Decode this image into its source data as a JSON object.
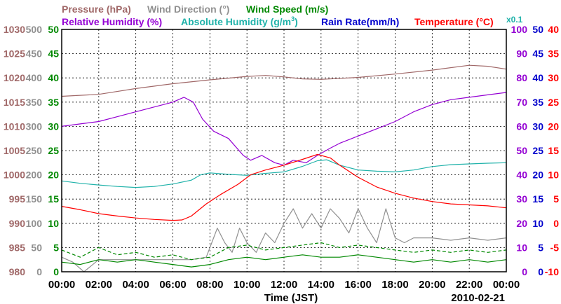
{
  "chart_data": {
    "type": "line",
    "date": "2010-02-21",
    "xlabel": "Time (JST)",
    "x_ticks": [
      "00:00",
      "02:00",
      "04:00",
      "06:00",
      "08:00",
      "10:00",
      "12:00",
      "14:00",
      "16:00",
      "18:00",
      "20:00",
      "22:00",
      "00:00"
    ],
    "x_range_hours": [
      0,
      24
    ],
    "legend": [
      {
        "name": "Pressure (hPa)",
        "color": "#a06868"
      },
      {
        "name": "Wind Direction (°)",
        "color": "#909090"
      },
      {
        "name": "Wind Speed (m/s)",
        "color": "#008800"
      },
      {
        "name": "Relative Humidity (%)",
        "color": "#9400d3"
      },
      {
        "name": "Absolute Humidity",
        "unit_text": "(g/m",
        "unit_sup": "3",
        "unit_close": ")",
        "color": "#20b2aa"
      },
      {
        "name": "Rain Rate(mm/h)",
        "color": "#0000cc"
      },
      {
        "name": "Temperature (°C)",
        "color": "#ff0000"
      }
    ],
    "abs_humidity_scale_note": "x0.1",
    "axes": {
      "pressure": {
        "side": "left",
        "color": "#a06868",
        "range": [
          980,
          1030
        ],
        "ticks": [
          "1030",
          "1025",
          "1020",
          "1015",
          "1010",
          "1005",
          "1000",
          "995",
          "990",
          "985",
          "980"
        ]
      },
      "wind_direction": {
        "side": "left",
        "color": "#909090",
        "range": [
          0,
          500
        ],
        "ticks": [
          "500",
          "450",
          "400",
          "350",
          "300",
          "250",
          "200",
          "150",
          "100",
          "50",
          "0"
        ]
      },
      "wind_speed": {
        "side": "left",
        "color": "#008800",
        "range": [
          0,
          50
        ],
        "ticks": [
          "50",
          "45",
          "40",
          "35",
          "30",
          "25",
          "20",
          "15",
          "10",
          "5",
          "0"
        ]
      },
      "humidity": {
        "side": "right",
        "color": "#9400d3",
        "range": [
          0,
          100
        ],
        "ticks": [
          "100",
          "90",
          "80",
          "70",
          "60",
          "50",
          "40",
          "30",
          "20",
          "10",
          "0"
        ]
      },
      "rain_rate": {
        "side": "right",
        "color": "#0000cc",
        "range": [
          0,
          50
        ],
        "ticks": [
          "50",
          "45",
          "40",
          "35",
          "30",
          "25",
          "20",
          "15",
          "10",
          "5",
          "0"
        ]
      },
      "temperature": {
        "side": "right",
        "color": "#ff0000",
        "range": [
          -10,
          40
        ],
        "ticks": [
          "40",
          "35",
          "30",
          "25",
          "20",
          "15",
          "10",
          "5",
          "0",
          "-5",
          "-10"
        ]
      }
    },
    "series": [
      {
        "name": "Pressure",
        "axis": "pressure",
        "color": "#a06868",
        "points": [
          [
            0,
            1016.2
          ],
          [
            2,
            1016.6
          ],
          [
            4,
            1017.8
          ],
          [
            6,
            1018.8
          ],
          [
            8,
            1019.6
          ],
          [
            10,
            1020.3
          ],
          [
            11,
            1020.5
          ],
          [
            12,
            1020.2
          ],
          [
            13,
            1019.8
          ],
          [
            14,
            1019.7
          ],
          [
            16,
            1020.1
          ],
          [
            18,
            1020.8
          ],
          [
            20,
            1021.6
          ],
          [
            22,
            1022.6
          ],
          [
            23,
            1022.4
          ],
          [
            24,
            1021.8
          ]
        ]
      },
      {
        "name": "Relative Humidity",
        "axis": "humidity",
        "color": "#9400d3",
        "points": [
          [
            0,
            60
          ],
          [
            1,
            61
          ],
          [
            2,
            62
          ],
          [
            3,
            64
          ],
          [
            4,
            66
          ],
          [
            5,
            68
          ],
          [
            6,
            70
          ],
          [
            6.6,
            72
          ],
          [
            7.1,
            70
          ],
          [
            7.6,
            63
          ],
          [
            8.2,
            58
          ],
          [
            9,
            55
          ],
          [
            9.8,
            48
          ],
          [
            10.2,
            46
          ],
          [
            10.8,
            48
          ],
          [
            11.5,
            45
          ],
          [
            12,
            44
          ],
          [
            12.5,
            46
          ],
          [
            13.2,
            45
          ],
          [
            13.8,
            48
          ],
          [
            14.5,
            51
          ],
          [
            15,
            53
          ],
          [
            16,
            56
          ],
          [
            17,
            59
          ],
          [
            18,
            62
          ],
          [
            19,
            66
          ],
          [
            20,
            69
          ],
          [
            21,
            71
          ],
          [
            22,
            72
          ],
          [
            23,
            73
          ],
          [
            24,
            74
          ]
        ]
      },
      {
        "name": "Absolute Humidity",
        "axis": "humidity",
        "color": "#20b2aa",
        "points": [
          [
            0,
            37.5
          ],
          [
            1,
            36.5
          ],
          [
            2,
            35.8
          ],
          [
            3,
            35.2
          ],
          [
            4,
            34.8
          ],
          [
            5,
            35.2
          ],
          [
            6,
            36.2
          ],
          [
            7,
            37.8
          ],
          [
            7.5,
            40
          ],
          [
            8,
            40.8
          ],
          [
            9,
            40.2
          ],
          [
            10,
            39.8
          ],
          [
            11,
            40.6
          ],
          [
            12,
            41.2
          ],
          [
            13,
            43.5
          ],
          [
            13.8,
            45.8
          ],
          [
            14.3,
            46.2
          ],
          [
            15,
            44
          ],
          [
            16,
            42
          ],
          [
            17,
            41.5
          ],
          [
            18,
            41.2
          ],
          [
            19,
            42
          ],
          [
            20,
            43.4
          ],
          [
            21,
            44.2
          ],
          [
            22,
            44.5
          ],
          [
            23,
            44.8
          ],
          [
            24,
            45
          ]
        ]
      },
      {
        "name": "Temperature",
        "axis": "temperature",
        "color": "#ff0000",
        "points": [
          [
            0,
            3.5
          ],
          [
            1,
            2.8
          ],
          [
            2,
            2
          ],
          [
            3,
            1.5
          ],
          [
            4,
            1.1
          ],
          [
            5,
            0.8
          ],
          [
            6,
            0.6
          ],
          [
            6.5,
            0.7
          ],
          [
            7,
            1.5
          ],
          [
            7.8,
            4
          ],
          [
            8.6,
            6
          ],
          [
            9.5,
            8
          ],
          [
            10.2,
            10
          ],
          [
            11,
            11
          ],
          [
            12,
            12
          ],
          [
            13,
            13.2
          ],
          [
            13.8,
            14.2
          ],
          [
            14.5,
            13.5
          ],
          [
            15,
            12
          ],
          [
            16,
            9.5
          ],
          [
            17,
            7.5
          ],
          [
            18,
            6.2
          ],
          [
            19,
            5.2
          ],
          [
            20,
            4.5
          ],
          [
            21,
            4
          ],
          [
            22,
            3.8
          ],
          [
            23,
            3.6
          ],
          [
            24,
            3.2
          ]
        ]
      },
      {
        "name": "Wind Direction",
        "axis": "wind_direction",
        "color": "#909090",
        "points": [
          [
            0,
            30
          ],
          [
            0.6,
            20
          ],
          [
            1.2,
            0
          ],
          [
            2,
            25
          ],
          [
            3,
            25
          ],
          [
            4,
            25
          ],
          [
            5,
            25
          ],
          [
            6,
            25
          ],
          [
            7,
            25
          ],
          [
            7.8,
            30
          ],
          [
            8.1,
            60
          ],
          [
            8.4,
            90
          ],
          [
            8.8,
            60
          ],
          [
            9.2,
            40
          ],
          [
            9.6,
            90
          ],
          [
            10,
            60
          ],
          [
            10.5,
            40
          ],
          [
            11,
            80
          ],
          [
            11.5,
            60
          ],
          [
            12,
            100
          ],
          [
            12.5,
            130
          ],
          [
            13,
            90
          ],
          [
            13.5,
            120
          ],
          [
            14,
            90
          ],
          [
            14.5,
            130
          ],
          [
            15,
            110
          ],
          [
            15.5,
            80
          ],
          [
            16,
            130
          ],
          [
            16.5,
            90
          ],
          [
            17,
            60
          ],
          [
            17.5,
            130
          ],
          [
            18,
            70
          ],
          [
            18.5,
            60
          ],
          [
            19,
            70
          ],
          [
            20,
            70
          ],
          [
            21,
            65
          ],
          [
            22,
            70
          ],
          [
            23,
            65
          ],
          [
            24,
            70
          ]
        ]
      },
      {
        "name": "Wind Speed",
        "axis": "wind_speed",
        "color": "#008800",
        "points": [
          [
            0,
            2
          ],
          [
            1,
            1.5
          ],
          [
            2,
            2.5
          ],
          [
            3,
            2
          ],
          [
            4,
            2.5
          ],
          [
            5,
            2
          ],
          [
            6,
            1.5
          ],
          [
            7,
            1
          ],
          [
            8,
            1.5
          ],
          [
            9,
            2.5
          ],
          [
            10,
            3
          ],
          [
            11,
            2.5
          ],
          [
            12,
            3
          ],
          [
            13,
            3.5
          ],
          [
            14,
            3
          ],
          [
            15,
            3
          ],
          [
            16,
            3.5
          ],
          [
            17,
            3
          ],
          [
            18,
            2.5
          ],
          [
            19,
            2
          ],
          [
            20,
            2.5
          ],
          [
            21,
            2
          ],
          [
            22,
            2.5
          ],
          [
            23,
            2
          ],
          [
            24,
            2.5
          ]
        ]
      },
      {
        "name": "Wind Speed (gust)",
        "axis": "wind_speed",
        "color": "#008800",
        "dashed": true,
        "points": [
          [
            0,
            4.5
          ],
          [
            1,
            3
          ],
          [
            2,
            5
          ],
          [
            3,
            3.5
          ],
          [
            4,
            4
          ],
          [
            5,
            3
          ],
          [
            6,
            3.5
          ],
          [
            7,
            2.5
          ],
          [
            8,
            3
          ],
          [
            9,
            5
          ],
          [
            10,
            5.5
          ],
          [
            11,
            4.5
          ],
          [
            12,
            5
          ],
          [
            13,
            5.5
          ],
          [
            14,
            6
          ],
          [
            15,
            5
          ],
          [
            16,
            5.5
          ],
          [
            17,
            5
          ],
          [
            18,
            4.5
          ],
          [
            19,
            4
          ],
          [
            20,
            4.5
          ],
          [
            21,
            4
          ],
          [
            22,
            4.5
          ],
          [
            23,
            4
          ],
          [
            24,
            4.5
          ]
        ]
      }
    ]
  }
}
